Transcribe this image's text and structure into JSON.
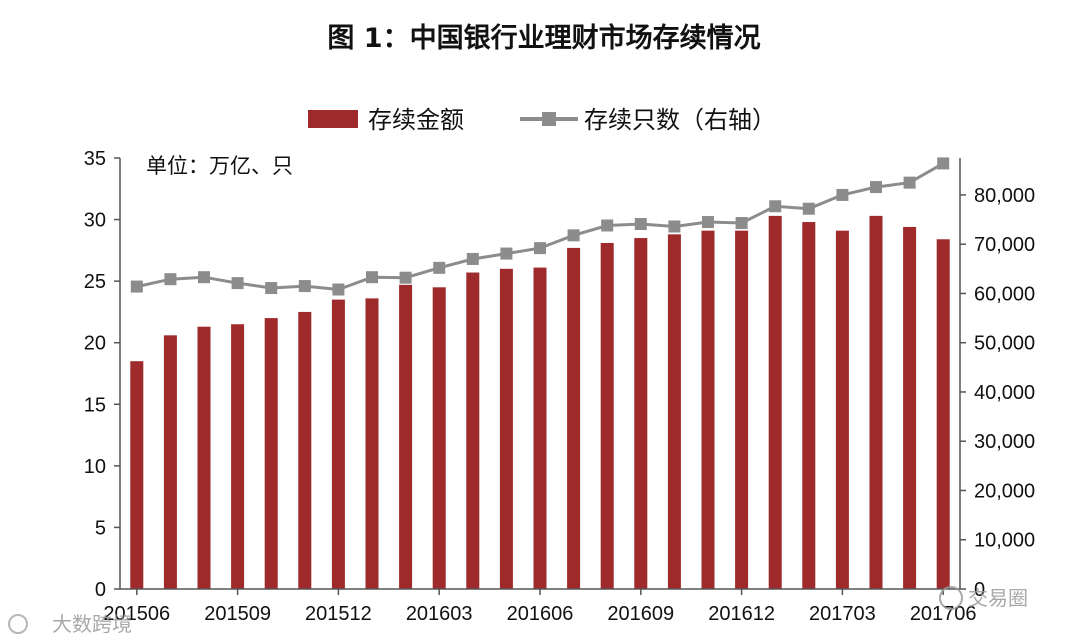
{
  "title": "图 1：中国银行业理财市场存续情况",
  "unit_note": "单位：万亿、只",
  "watermarks": {
    "left": "大数跨境",
    "right": "交易圈"
  },
  "colors": {
    "bar": "#9e2a2b",
    "line": "#8c8c8c",
    "axis": "#555555"
  },
  "chart_data": {
    "type": "bar",
    "title": "图 1：中国银行业理财市场存续情况",
    "categories": [
      "201506",
      "201507",
      "201508",
      "201509",
      "201510",
      "201511",
      "201512",
      "201601",
      "201602",
      "201603",
      "201604",
      "201605",
      "201606",
      "201607",
      "201608",
      "201609",
      "201610",
      "201611",
      "201612",
      "201701",
      "201702",
      "201703",
      "201704",
      "201705",
      "201706"
    ],
    "x_tick_labels": [
      "201506",
      "201509",
      "201512",
      "201603",
      "201606",
      "201609",
      "201612",
      "201703",
      "201706"
    ],
    "series": [
      {
        "name": "存续金额",
        "type": "bar",
        "axis": "left",
        "values": [
          18.5,
          20.6,
          21.3,
          21.5,
          22.0,
          22.5,
          23.5,
          23.6,
          24.7,
          24.5,
          25.7,
          26.0,
          26.1,
          27.7,
          28.1,
          28.5,
          28.8,
          29.1,
          29.1,
          30.3,
          29.8,
          29.1,
          30.3,
          29.4,
          28.4
        ]
      },
      {
        "name": "存续只数（右轴）",
        "type": "line",
        "axis": "right",
        "values": [
          61400,
          62900,
          63300,
          62100,
          61100,
          61500,
          60800,
          63300,
          63200,
          65200,
          67000,
          68100,
          69200,
          71800,
          73800,
          74100,
          73600,
          74500,
          74300,
          77700,
          77200,
          80000,
          81600,
          82500,
          86400
        ]
      }
    ],
    "y_left": {
      "ylim": [
        0,
        35
      ],
      "ticks": [
        "0",
        "5",
        "10",
        "15",
        "20",
        "25",
        "30",
        "35"
      ]
    },
    "y_right": {
      "ylim": [
        0,
        87500
      ],
      "ticks": [
        "0",
        "10,000",
        "20,000",
        "30,000",
        "40,000",
        "50,000",
        "60,000",
        "70,000",
        "80,000"
      ]
    },
    "legend": "top-center",
    "grid": false
  }
}
